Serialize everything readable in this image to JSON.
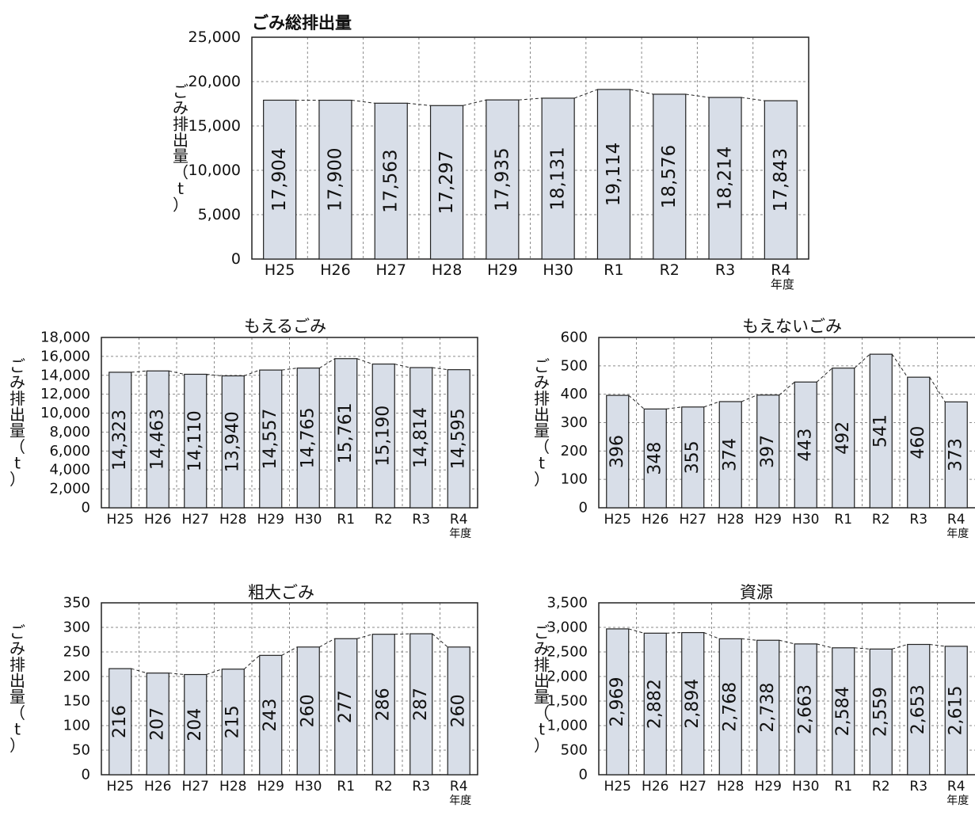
{
  "chart_data": [
    {
      "type": "bar",
      "title": "ごみ総排出量",
      "ylabel": "ごみ排出量（t）",
      "xlabel": "年度",
      "categories": [
        "H25",
        "H26",
        "H27",
        "H28",
        "H29",
        "H30",
        "R1",
        "R2",
        "R3",
        "R4"
      ],
      "values": [
        17904,
        17900,
        17563,
        17297,
        17935,
        18131,
        19114,
        18576,
        18214,
        17843
      ],
      "value_labels": [
        "17,904",
        "17,900",
        "17,563",
        "17,297",
        "17,935",
        "18,131",
        "19,114",
        "18,576",
        "18,214",
        "17,843"
      ],
      "ylim": [
        0,
        25000
      ],
      "yticks": [
        0,
        5000,
        10000,
        15000,
        20000,
        25000
      ],
      "ytick_labels": [
        "0",
        "5,000",
        "10,000",
        "15,000",
        "20,000",
        "25,000"
      ],
      "grid": true,
      "bar_color": "#d8dee8"
    },
    {
      "type": "bar",
      "title": "もえるごみ",
      "ylabel": "ごみ排出量（t）",
      "xlabel": "年度",
      "categories": [
        "H25",
        "H26",
        "H27",
        "H28",
        "H29",
        "H30",
        "R1",
        "R2",
        "R3",
        "R4"
      ],
      "values": [
        14323,
        14463,
        14110,
        13940,
        14557,
        14765,
        15761,
        15190,
        14814,
        14595
      ],
      "value_labels": [
        "14,323",
        "14,463",
        "14,110",
        "13,940",
        "14,557",
        "14,765",
        "15,761",
        "15,190",
        "14,814",
        "14,595"
      ],
      "ylim": [
        0,
        18000
      ],
      "yticks": [
        0,
        2000,
        4000,
        6000,
        8000,
        10000,
        12000,
        14000,
        16000,
        18000
      ],
      "ytick_labels": [
        "0",
        "2,000",
        "4,000",
        "6,000",
        "8,000",
        "10,000",
        "12,000",
        "14,000",
        "16,000",
        "18,000"
      ],
      "grid": true,
      "bar_color": "#d8dee8"
    },
    {
      "type": "bar",
      "title": "もえないごみ",
      "ylabel": "ごみ排出量（t）",
      "xlabel": "年度",
      "categories": [
        "H25",
        "H26",
        "H27",
        "H28",
        "H29",
        "H30",
        "R1",
        "R2",
        "R3",
        "R4"
      ],
      "values": [
        396,
        348,
        355,
        374,
        397,
        443,
        492,
        541,
        460,
        373
      ],
      "value_labels": [
        "396",
        "348",
        "355",
        "374",
        "397",
        "443",
        "492",
        "541",
        "460",
        "373"
      ],
      "ylim": [
        0,
        600
      ],
      "yticks": [
        0,
        100,
        200,
        300,
        400,
        500,
        600
      ],
      "ytick_labels": [
        "0",
        "100",
        "200",
        "300",
        "400",
        "500",
        "600"
      ],
      "grid": true,
      "bar_color": "#d8dee8"
    },
    {
      "type": "bar",
      "title": "粗大ごみ",
      "ylabel": "ごみ排出量（t）",
      "xlabel": "年度",
      "categories": [
        "H25",
        "H26",
        "H27",
        "H28",
        "H29",
        "H30",
        "R1",
        "R2",
        "R3",
        "R4"
      ],
      "values": [
        216,
        207,
        204,
        215,
        243,
        260,
        277,
        286,
        287,
        260
      ],
      "value_labels": [
        "216",
        "207",
        "204",
        "215",
        "243",
        "260",
        "277",
        "286",
        "287",
        "260"
      ],
      "ylim": [
        0,
        350
      ],
      "yticks": [
        0,
        50,
        100,
        150,
        200,
        250,
        300,
        350
      ],
      "ytick_labels": [
        "0",
        "50",
        "100",
        "150",
        "200",
        "250",
        "300",
        "350"
      ],
      "grid": true,
      "bar_color": "#d8dee8"
    },
    {
      "type": "bar",
      "title": "資源",
      "ylabel": "ごみ排出量（t）",
      "xlabel": "年度",
      "categories": [
        "H25",
        "H26",
        "H27",
        "H28",
        "H29",
        "H30",
        "R1",
        "R2",
        "R3",
        "R4"
      ],
      "values": [
        2969,
        2882,
        2894,
        2768,
        2738,
        2663,
        2584,
        2559,
        2653,
        2615
      ],
      "value_labels": [
        "2,969",
        "2,882",
        "2,894",
        "2,768",
        "2,738",
        "2,663",
        "2,584",
        "2,559",
        "2,653",
        "2,615"
      ],
      "ylim": [
        0,
        3500
      ],
      "yticks": [
        0,
        500,
        1000,
        1500,
        2000,
        2500,
        3000,
        3500
      ],
      "ytick_labels": [
        "0",
        "500",
        "1,000",
        "1,500",
        "2,000",
        "2,500",
        "3,000",
        "3,500"
      ],
      "grid": true,
      "bar_color": "#d8dee8"
    }
  ]
}
